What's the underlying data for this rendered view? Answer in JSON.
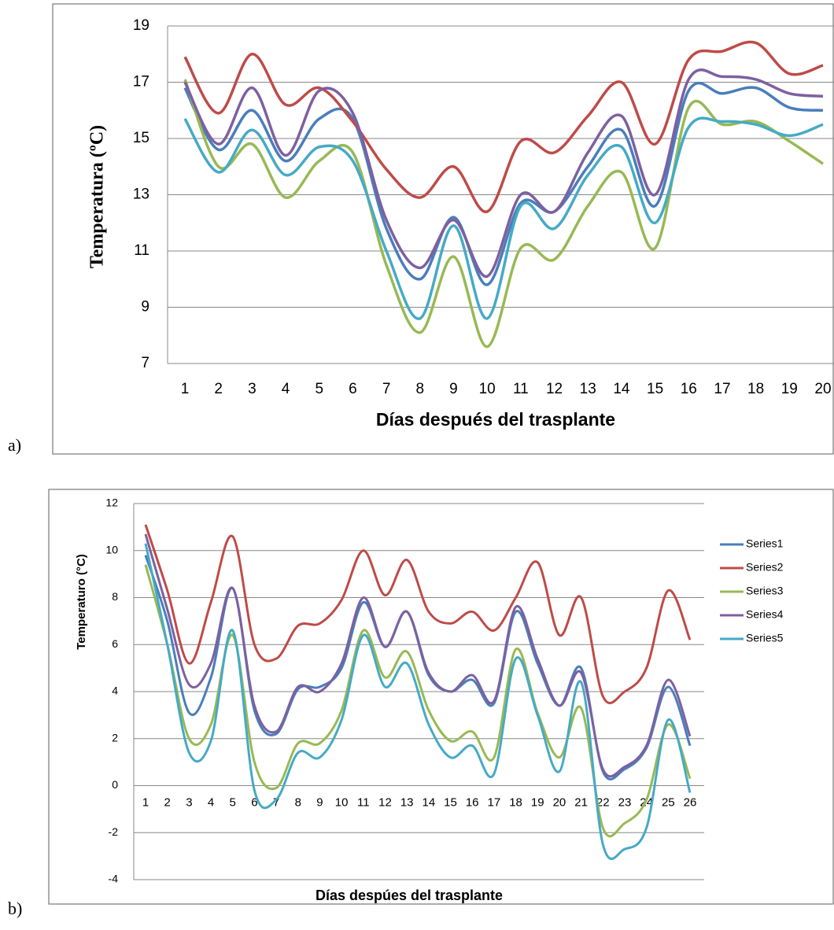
{
  "chart_data": [
    {
      "type": "line",
      "panel_label": "a)",
      "y_label": "Temperatura (ºC)",
      "x_label": "Días después del trasplante",
      "categories": [
        "1",
        "2",
        "3",
        "4",
        "5",
        "6",
        "7",
        "8",
        "9",
        "10",
        "11",
        "12",
        "13",
        "14",
        "15",
        "16",
        "17",
        "18",
        "19",
        "20"
      ],
      "ylim": [
        7,
        19
      ],
      "yticks": [
        7,
        9,
        11,
        13,
        15,
        17,
        19
      ],
      "grid": true,
      "series": [
        {
          "color": "#4a7ebb",
          "values": [
            16.8,
            14.6,
            16.0,
            14.2,
            15.7,
            15.7,
            11.8,
            10.0,
            12.2,
            9.8,
            12.7,
            12.4,
            14.0,
            15.3,
            12.6,
            16.7,
            16.6,
            16.8,
            16.1,
            16.0
          ]
        },
        {
          "color": "#be4b48",
          "values": [
            17.9,
            15.9,
            18.0,
            16.2,
            16.8,
            15.6,
            13.9,
            12.9,
            14.0,
            12.4,
            14.9,
            14.5,
            15.8,
            17.0,
            14.8,
            17.8,
            18.1,
            18.4,
            17.3,
            17.6
          ]
        },
        {
          "color": "#98b954",
          "values": [
            17.1,
            14.0,
            14.8,
            12.9,
            14.2,
            14.5,
            10.5,
            8.1,
            10.8,
            7.6,
            11.1,
            10.7,
            12.6,
            13.8,
            11.1,
            16.1,
            15.5,
            15.6,
            14.9,
            14.1
          ]
        },
        {
          "color": "#7d60a0",
          "values": [
            17.0,
            14.8,
            16.8,
            14.4,
            16.7,
            15.9,
            12.1,
            10.4,
            12.1,
            10.1,
            13.0,
            12.4,
            14.5,
            15.8,
            13.0,
            17.1,
            17.2,
            17.1,
            16.6,
            16.5
          ]
        },
        {
          "color": "#46aac5",
          "values": [
            15.7,
            13.8,
            15.3,
            13.7,
            14.7,
            14.2,
            11.0,
            8.6,
            11.9,
            8.6,
            12.6,
            11.8,
            13.7,
            14.7,
            12.0,
            15.4,
            15.6,
            15.5,
            15.1,
            15.5
          ]
        }
      ]
    },
    {
      "type": "line",
      "panel_label": "b)",
      "y_label": "Temperaturo (°C)",
      "x_label": "Días despúes del trasplante",
      "categories": [
        "1",
        "2",
        "3",
        "4",
        "5",
        "6",
        "7",
        "8",
        "9",
        "10",
        "11",
        "12",
        "13",
        "14",
        "15",
        "16",
        "17",
        "18",
        "19",
        "20",
        "21",
        "22",
        "23",
        "24",
        "25",
        "26"
      ],
      "ylim": [
        -4,
        12
      ],
      "yticks": [
        -4,
        -2,
        0,
        2,
        4,
        6,
        8,
        10,
        12
      ],
      "grid": true,
      "legend": "right",
      "series": [
        {
          "name": "Series1",
          "color": "#4a7ebb",
          "values": [
            9.8,
            7.0,
            3.1,
            4.6,
            8.4,
            3.2,
            2.2,
            4.1,
            4.2,
            5.0,
            7.8,
            5.9,
            7.4,
            4.7,
            4.0,
            4.5,
            3.5,
            7.4,
            5.2,
            3.4,
            5.0,
            0.6,
            0.7,
            1.6,
            4.2,
            1.7
          ]
        },
        {
          "name": "Series2",
          "color": "#be4b48",
          "values": [
            11.1,
            8.3,
            5.2,
            7.8,
            10.6,
            6.0,
            5.4,
            6.8,
            6.9,
            7.9,
            10.0,
            8.1,
            9.6,
            7.4,
            6.9,
            7.4,
            6.6,
            8.0,
            9.5,
            6.4,
            8.0,
            3.8,
            4.0,
            5.0,
            8.3,
            6.2
          ]
        },
        {
          "name": "Series3",
          "color": "#98b954",
          "values": [
            9.4,
            6.0,
            2.0,
            2.6,
            6.4,
            1.0,
            -0.1,
            1.8,
            1.8,
            3.2,
            6.6,
            4.6,
            5.7,
            3.2,
            1.9,
            2.3,
            1.2,
            5.8,
            3.1,
            1.2,
            3.3,
            -1.8,
            -1.6,
            -0.6,
            2.6,
            0.3
          ]
        },
        {
          "name": "Series4",
          "color": "#7d60a0",
          "values": [
            10.7,
            7.5,
            4.3,
            5.2,
            8.4,
            3.4,
            2.3,
            4.2,
            4.0,
            5.2,
            8.0,
            5.9,
            7.4,
            4.8,
            4.0,
            4.7,
            3.6,
            7.6,
            5.4,
            3.4,
            4.8,
            0.7,
            0.8,
            1.7,
            4.5,
            2.1
          ]
        },
        {
          "name": "Series5",
          "color": "#46aac5",
          "values": [
            10.3,
            6.0,
            1.4,
            1.9,
            6.6,
            -0.2,
            -0.6,
            1.4,
            1.2,
            2.8,
            6.4,
            4.2,
            5.2,
            2.6,
            1.2,
            1.7,
            0.5,
            5.4,
            3.0,
            0.6,
            4.4,
            -2.5,
            -2.7,
            -1.8,
            2.8,
            -0.3
          ]
        }
      ]
    }
  ]
}
